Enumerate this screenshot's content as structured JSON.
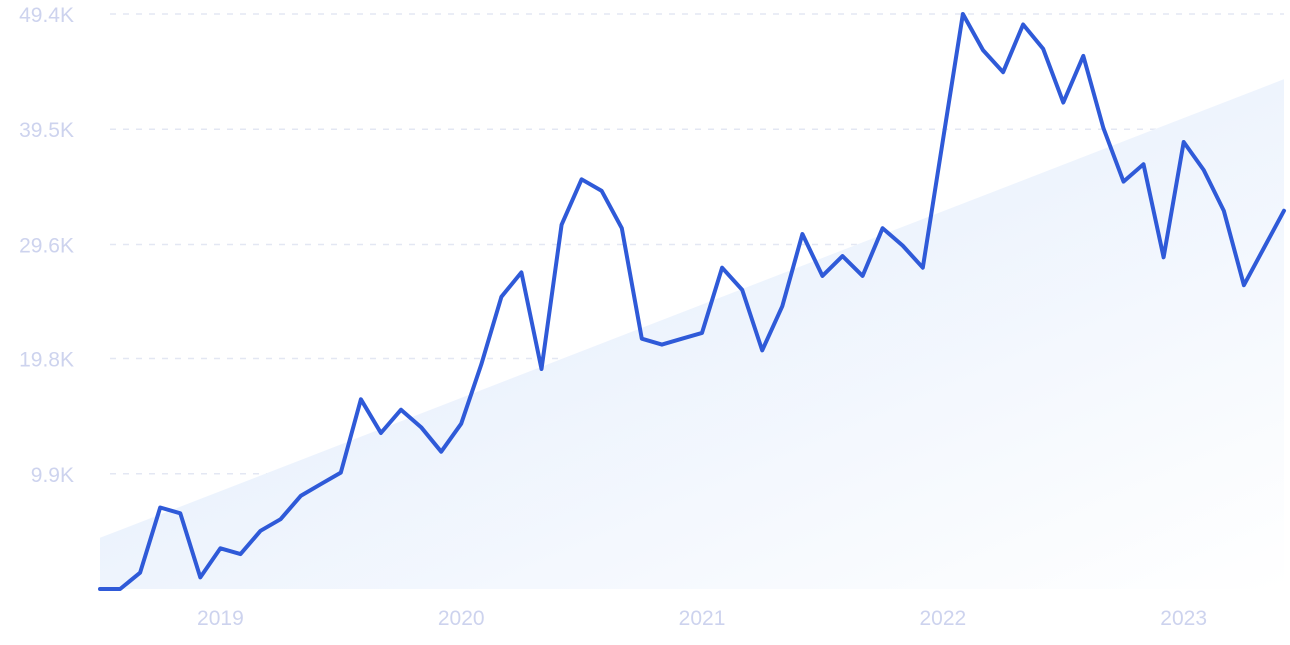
{
  "chart_data": {
    "type": "line",
    "title": "",
    "xlabel": "",
    "ylabel": "",
    "x_ticks": [
      "2019",
      "2020",
      "2021",
      "2022",
      "2023"
    ],
    "y_ticks": [
      "9.9K",
      "19.8K",
      "29.6K",
      "39.5K",
      "49.4K"
    ],
    "y_tick_values": [
      9900,
      19800,
      29600,
      39500,
      49400
    ],
    "ylim": [
      0,
      49400
    ],
    "xlim": [
      "2018-07",
      "2023-06"
    ],
    "grid": true,
    "colors": {
      "line": "#2f5ad8",
      "trend_fill": "#dde9fb",
      "grid": "#e3e7f3",
      "tick": "#cdd3ee"
    },
    "trend": {
      "start": 4400,
      "end": 43800
    },
    "x": [
      "2018-07",
      "2018-08",
      "2018-09",
      "2018-10",
      "2018-11",
      "2018-12",
      "2019-01",
      "2019-02",
      "2019-03",
      "2019-04",
      "2019-05",
      "2019-06",
      "2019-07",
      "2019-08",
      "2019-09",
      "2019-10",
      "2019-11",
      "2019-12",
      "2020-01",
      "2020-02",
      "2020-03",
      "2020-04",
      "2020-05",
      "2020-06",
      "2020-07",
      "2020-08",
      "2020-09",
      "2020-10",
      "2020-11",
      "2020-12",
      "2021-01",
      "2021-02",
      "2021-03",
      "2021-04",
      "2021-05",
      "2021-06",
      "2021-07",
      "2021-08",
      "2021-09",
      "2021-10",
      "2021-11",
      "2021-12",
      "2022-01",
      "2022-02",
      "2022-03",
      "2022-04",
      "2022-05",
      "2022-06",
      "2022-07",
      "2022-08",
      "2022-09",
      "2022-10",
      "2022-11",
      "2022-12",
      "2023-01",
      "2023-02",
      "2023-03",
      "2023-04",
      "2023-05",
      "2023-06"
    ],
    "values": [
      0,
      0,
      1400,
      7000,
      6500,
      1000,
      3500,
      3000,
      5000,
      6000,
      8000,
      9000,
      10000,
      16300,
      13400,
      15400,
      13900,
      11800,
      14200,
      19300,
      25100,
      27200,
      18900,
      31300,
      35200,
      34200,
      31000,
      21500,
      21000,
      21500,
      22000,
      27600,
      25700,
      20500,
      24300,
      30500,
      26900,
      28600,
      26900,
      31000,
      29500,
      27600,
      38500,
      49400,
      46300,
      44400,
      48500,
      46400,
      41800,
      45800,
      39600,
      35000,
      36500,
      28500,
      38400,
      36000,
      32500,
      26100,
      29300,
      32500
    ]
  }
}
